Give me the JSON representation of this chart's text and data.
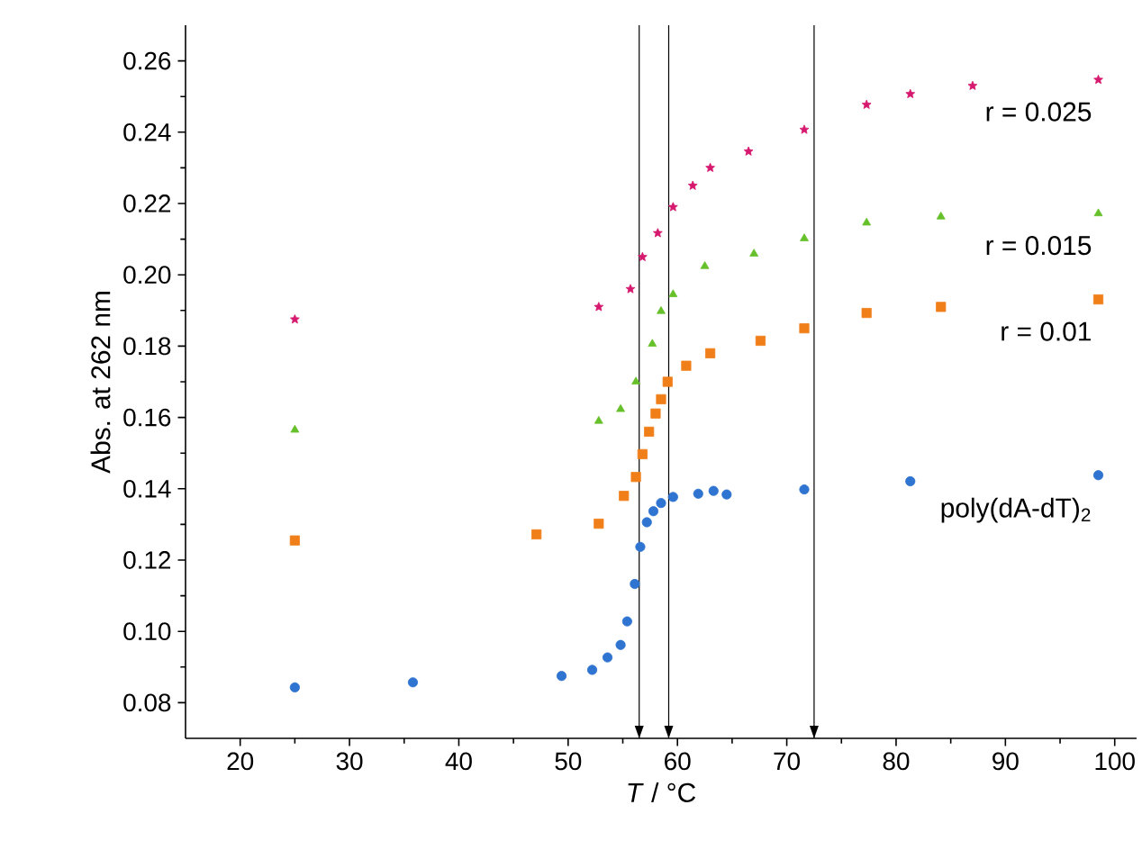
{
  "chart_data": {
    "type": "scatter",
    "xlabel": "*T* / °C",
    "ylabel": "Abs. at 262 nm",
    "xlim": [
      15,
      102
    ],
    "ylim": [
      0.07,
      0.27
    ],
    "xticks": [
      20,
      30,
      40,
      50,
      60,
      70,
      80,
      90,
      100
    ],
    "yticks": [
      {
        "value": 0.08,
        "label": "0.08"
      },
      {
        "value": 0.1,
        "label": "0.10"
      },
      {
        "value": 0.12,
        "label": "0.12"
      },
      {
        "value": 0.14,
        "label": "0.14"
      },
      {
        "value": 0.16,
        "label": "0.16"
      },
      {
        "value": 0.18,
        "label": "0.18"
      },
      {
        "value": 0.2,
        "label": "0.20"
      },
      {
        "value": 0.22,
        "label": "0.22"
      },
      {
        "value": 0.24,
        "label": "0.24"
      },
      {
        "value": 0.26,
        "label": "0.26"
      }
    ],
    "series": [
      {
        "name": "r = 0.025",
        "color": "#d6186e",
        "marker": "star",
        "x": [
          25,
          52.8,
          55.7,
          56.8,
          58.2,
          59.6,
          61.4,
          63.0,
          66.5,
          71.6,
          77.3,
          81.3,
          87,
          98.5
        ],
        "values": [
          0.1875,
          0.191,
          0.196,
          0.205,
          0.2117,
          0.219,
          0.225,
          0.23,
          0.2346,
          0.2407,
          0.2477,
          0.2507,
          0.253,
          0.2547
        ]
      },
      {
        "name": "r = 0.015",
        "color": "#66c02a",
        "marker": "triangle",
        "x": [
          25,
          52.8,
          54.8,
          56.2,
          57.7,
          58.5,
          59.6,
          62.5,
          67.0,
          71.6,
          77.3,
          84.1,
          98.5
        ],
        "values": [
          0.1565,
          0.159,
          0.1623,
          0.17,
          0.1806,
          0.1898,
          0.1945,
          0.2024,
          0.2059,
          0.2102,
          0.2146,
          0.2163,
          0.2172
        ]
      },
      {
        "name": "r = 0.01",
        "color": "#f07f1a",
        "marker": "square",
        "x": [
          25,
          47.1,
          52.8,
          55.1,
          56.2,
          56.8,
          57.4,
          58.0,
          58.5,
          59.1,
          60.8,
          63.0,
          67.6,
          71.6,
          77.3,
          84.1,
          98.5
        ],
        "values": [
          0.1255,
          0.1272,
          0.1302,
          0.138,
          0.1433,
          0.1497,
          0.156,
          0.1611,
          0.1651,
          0.17,
          0.1745,
          0.178,
          0.1815,
          0.185,
          0.1893,
          0.191,
          0.1931
        ]
      },
      {
        "name": "poly(dA-dT)$_{2}$",
        "color": "#2f74d0",
        "marker": "circle",
        "x": [
          25,
          35.8,
          49.4,
          52.2,
          53.6,
          54.8,
          55.4,
          56.1,
          56.6,
          57.2,
          57.8,
          58.5,
          59.6,
          61.9,
          63.3,
          64.5,
          71.6,
          81.3,
          98.5
        ],
        "values": [
          0.0843,
          0.0857,
          0.0875,
          0.0892,
          0.0927,
          0.0962,
          0.1028,
          0.1133,
          0.1237,
          0.1306,
          0.1337,
          0.136,
          0.1377,
          0.1386,
          0.1394,
          0.1384,
          0.1398,
          0.1421,
          0.1438
        ]
      }
    ],
    "ref_lines": [
      {
        "axis": "x",
        "value": 56.5
      },
      {
        "axis": "x",
        "value": 59.2
      },
      {
        "axis": "x",
        "value": 72.5
      }
    ],
    "grid": false
  }
}
